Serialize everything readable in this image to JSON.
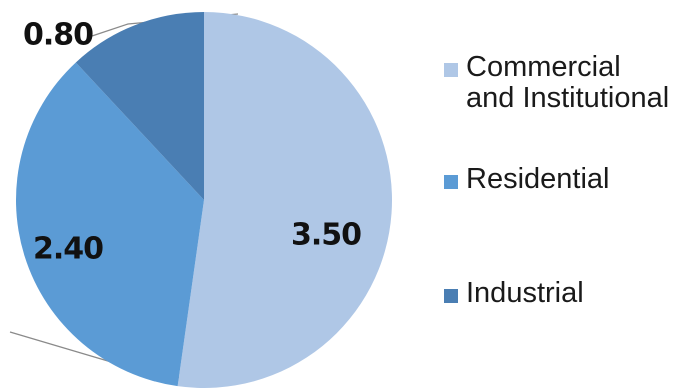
{
  "chart_data": {
    "type": "pie",
    "slices": [
      {
        "name": "Commercial and Institutional",
        "value": 3.5,
        "label": "3.50",
        "color": "#afc7e6"
      },
      {
        "name": "Residential",
        "value": 2.4,
        "label": "2.40",
        "color": "#5b9bd5"
      },
      {
        "name": "Industrial",
        "value": 0.8,
        "label": "0.80",
        "color": "#4a7eb3"
      }
    ],
    "legend": {
      "placement": "right",
      "entries": [
        "Commercial and Institutional",
        "Residential",
        "Industrial"
      ],
      "display_lines": [
        [
          "Commercial",
          "and Institutional"
        ],
        [
          "Residential"
        ],
        [
          "Industrial"
        ]
      ]
    },
    "start_angle": "12 o'clock",
    "direction": "clockwise"
  }
}
